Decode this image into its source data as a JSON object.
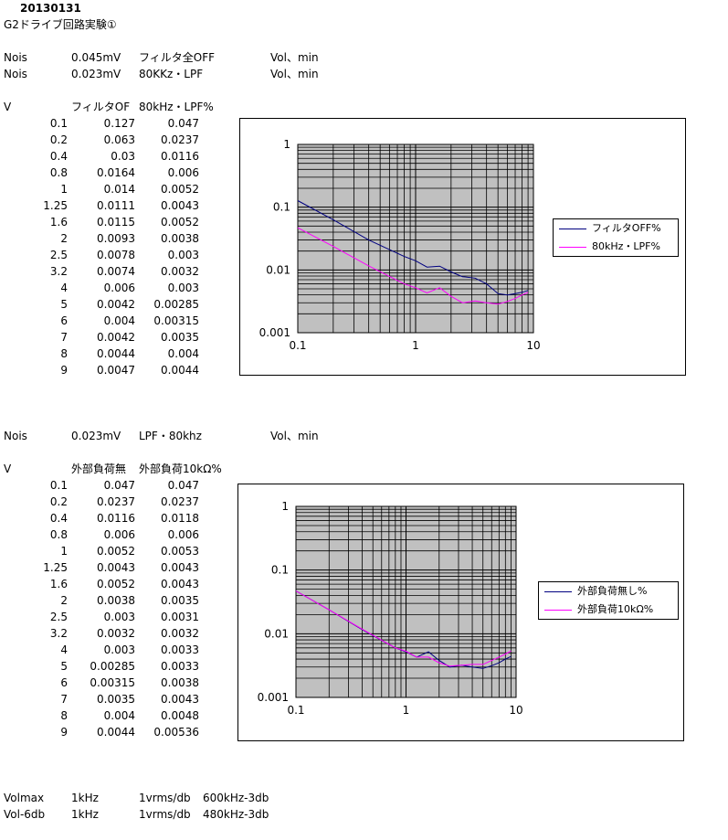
{
  "date": "20130131",
  "title": "G2ドライブ回路実験①",
  "noise_rows": [
    {
      "label": "Nois",
      "value": "0.045mV",
      "desc": "フィルタ全OFF",
      "cond": "Vol、min"
    },
    {
      "label": "Nois",
      "value": "0.023mV",
      "desc": "80KKz・LPF",
      "cond": "Vol、min"
    }
  ],
  "table1": {
    "headers": [
      "V",
      "フィルタOF",
      "80kHz・LPF%"
    ],
    "rows": [
      [
        "0.1",
        "0.127",
        "0.047"
      ],
      [
        "0.2",
        "0.063",
        "0.0237"
      ],
      [
        "0.4",
        "0.03",
        "0.0116"
      ],
      [
        "0.8",
        "0.0164",
        "0.006"
      ],
      [
        "1",
        "0.014",
        "0.0052"
      ],
      [
        "1.25",
        "0.0111",
        "0.0043"
      ],
      [
        "1.6",
        "0.0115",
        "0.0052"
      ],
      [
        "2",
        "0.0093",
        "0.0038"
      ],
      [
        "2.5",
        "0.0078",
        "0.003"
      ],
      [
        "3.2",
        "0.0074",
        "0.0032"
      ],
      [
        "4",
        "0.006",
        "0.003"
      ],
      [
        "5",
        "0.0042",
        "0.00285"
      ],
      [
        "6",
        "0.004",
        "0.00315"
      ],
      [
        "7",
        "0.0042",
        "0.0035"
      ],
      [
        "8",
        "0.0044",
        "0.004"
      ],
      [
        "9",
        "0.0047",
        "0.0044"
      ]
    ]
  },
  "noise_row3": {
    "label": "Nois",
    "value": "0.023mV",
    "desc": "LPF・80khz",
    "cond": "Vol、min"
  },
  "table2": {
    "headers": [
      "V",
      "外部負荷無",
      "外部負荷10kΩ%"
    ],
    "rows": [
      [
        "0.1",
        "0.047",
        "0.047"
      ],
      [
        "0.2",
        "0.0237",
        "0.0237"
      ],
      [
        "0.4",
        "0.0116",
        "0.0118"
      ],
      [
        "0.8",
        "0.006",
        "0.006"
      ],
      [
        "1",
        "0.0052",
        "0.0053"
      ],
      [
        "1.25",
        "0.0043",
        "0.0043"
      ],
      [
        "1.6",
        "0.0052",
        "0.0043"
      ],
      [
        "2",
        "0.0038",
        "0.0035"
      ],
      [
        "2.5",
        "0.003",
        "0.0031"
      ],
      [
        "3.2",
        "0.0032",
        "0.0032"
      ],
      [
        "4",
        "0.003",
        "0.0033"
      ],
      [
        "5",
        "0.00285",
        "0.0033"
      ],
      [
        "6",
        "0.00315",
        "0.0038"
      ],
      [
        "7",
        "0.0035",
        "0.0043"
      ],
      [
        "8",
        "0.004",
        "0.0048"
      ],
      [
        "9",
        "0.0044",
        "0.00536"
      ]
    ]
  },
  "footer_rows": [
    {
      "label": "Volmax",
      "freq": "1kHz",
      "level": "1vrms/db",
      "bw": "600kHz-3db"
    },
    {
      "label": "Vol-6db",
      "freq": "1kHz",
      "level": "1vrms/db",
      "bw": "480kHz-3db"
    }
  ],
  "chart_data": [
    {
      "type": "line",
      "x": [
        0.1,
        0.2,
        0.4,
        0.8,
        1,
        1.25,
        1.6,
        2,
        2.5,
        3.2,
        4,
        5,
        6,
        7,
        8,
        9
      ],
      "series": [
        {
          "name": "フィルタOFF%",
          "color": "#000080",
          "values": [
            0.127,
            0.063,
            0.03,
            0.0164,
            0.014,
            0.0111,
            0.0115,
            0.0093,
            0.0078,
            0.0074,
            0.006,
            0.0042,
            0.004,
            0.0042,
            0.0044,
            0.0047
          ]
        },
        {
          "name": "80kHz・LPF%",
          "color": "#ff00ff",
          "values": [
            0.047,
            0.0237,
            0.0116,
            0.006,
            0.0052,
            0.0043,
            0.0052,
            0.0038,
            0.003,
            0.0032,
            0.003,
            0.00285,
            0.00315,
            0.0035,
            0.004,
            0.0044
          ]
        }
      ],
      "x_scale": "log",
      "y_scale": "log",
      "xlim": [
        0.1,
        10
      ],
      "ylim": [
        0.001,
        1
      ],
      "x_ticks": [
        "0.1",
        "1",
        "10"
      ],
      "y_ticks": [
        "0.001",
        "0.01",
        "0.1",
        "1"
      ],
      "grid": true,
      "legend": "right"
    },
    {
      "type": "line",
      "x": [
        0.1,
        0.2,
        0.4,
        0.8,
        1,
        1.25,
        1.6,
        2,
        2.5,
        3.2,
        4,
        5,
        6,
        7,
        8,
        9
      ],
      "series": [
        {
          "name": "外部負荷無し%",
          "color": "#000080",
          "values": [
            0.047,
            0.0237,
            0.0116,
            0.006,
            0.0052,
            0.0043,
            0.0052,
            0.0038,
            0.003,
            0.0032,
            0.003,
            0.00285,
            0.00315,
            0.0035,
            0.004,
            0.0044
          ]
        },
        {
          "name": "外部負荷10kΩ%",
          "color": "#ff00ff",
          "values": [
            0.047,
            0.0237,
            0.0118,
            0.006,
            0.0053,
            0.0043,
            0.0043,
            0.0035,
            0.0031,
            0.0032,
            0.0033,
            0.0033,
            0.0038,
            0.0043,
            0.0048,
            0.00536
          ]
        }
      ],
      "x_scale": "log",
      "y_scale": "log",
      "xlim": [
        0.1,
        10
      ],
      "ylim": [
        0.001,
        1
      ],
      "x_ticks": [
        "0.1",
        "1",
        "10"
      ],
      "y_ticks": [
        "0.001",
        "0.01",
        "0.1",
        "1"
      ],
      "grid": true,
      "legend": "right"
    }
  ]
}
